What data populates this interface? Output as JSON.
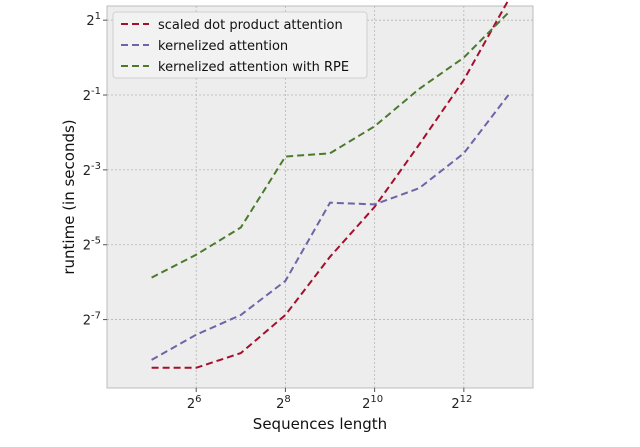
{
  "chart_data": {
    "type": "line",
    "title": "",
    "xlabel": "Sequences length",
    "ylabel": "runtime (in seconds)",
    "x_scale": "log2",
    "y_scale": "log2",
    "xlim": [
      16,
      12000
    ],
    "ylim": [
      0.0022,
      2.6
    ],
    "grid": true,
    "grid_style": "dotted",
    "legend_position": "top-left",
    "background": "#ededed",
    "x": [
      32,
      64,
      128,
      256,
      512,
      1024,
      2048,
      4096,
      8192
    ],
    "xticks": [
      {
        "base": "2",
        "exp": "6",
        "value": 64
      },
      {
        "base": "2",
        "exp": "8",
        "value": 256
      },
      {
        "base": "2",
        "exp": "10",
        "value": 1024
      },
      {
        "base": "2",
        "exp": "12",
        "value": 4096
      }
    ],
    "yticks": [
      {
        "base": "2",
        "exp": "-7",
        "value": 0.0078125
      },
      {
        "base": "2",
        "exp": "-5",
        "value": 0.03125
      },
      {
        "base": "2",
        "exp": "-3",
        "value": 0.125
      },
      {
        "base": "2",
        "exp": "-1",
        "value": 0.5
      },
      {
        "base": "2",
        "exp": "1",
        "value": 2
      }
    ],
    "series": [
      {
        "name": "scaled dot product attention",
        "color": "#a50f2c",
        "values": [
          0.0032,
          0.0032,
          0.0042,
          0.0085,
          0.025,
          0.063,
          0.2,
          0.66,
          2.9
        ]
      },
      {
        "name": "kernelized attention",
        "color": "#7262a6",
        "values": [
          0.0037,
          0.0059,
          0.0085,
          0.016,
          0.068,
          0.066,
          0.089,
          0.17,
          0.5
        ]
      },
      {
        "name": "kernelized attention with RPE",
        "color": "#4a7a2a",
        "values": [
          0.017,
          0.026,
          0.043,
          0.16,
          0.17,
          0.28,
          0.56,
          1.0,
          2.3
        ]
      }
    ]
  }
}
